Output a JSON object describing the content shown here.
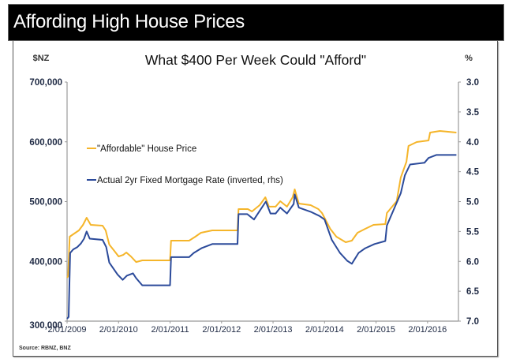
{
  "banner": {
    "title": "Affording High House Prices"
  },
  "source": "Source: RBNZ, BNZ",
  "chart_data": {
    "type": "line",
    "title": "What $400 Per Week Could \"Afford\"",
    "left_axis": {
      "label": "$NZ",
      "range": [
        300000,
        700000
      ],
      "ticks": [
        300000,
        400000,
        500000,
        600000,
        700000
      ],
      "tick_labels": [
        "300,000",
        "400,000",
        "500,000",
        "600,000",
        "700,000"
      ]
    },
    "right_axis": {
      "label": "%",
      "range": [
        3.0,
        7.0
      ],
      "inverted": true,
      "ticks": [
        3.0,
        3.5,
        4.0,
        4.5,
        5.0,
        5.5,
        6.0,
        6.5,
        7.0
      ],
      "tick_labels": [
        "3.0",
        "3.5",
        "4.0",
        "4.5",
        "5.0",
        "5.5",
        "6.0",
        "6.5",
        "7.0"
      ]
    },
    "x_axis": {
      "range": [
        2009.0,
        2016.6
      ],
      "ticks": [
        2009,
        2010,
        2011,
        2012,
        2013,
        2014,
        2015,
        2016
      ],
      "tick_labels": [
        "2/01/2009",
        "2/01/2010",
        "2/01/2011",
        "2/01/2012",
        "2/01/2013",
        "2/01/2014",
        "2/01/2015",
        "2/01/2016"
      ]
    },
    "grid": false,
    "legend": {
      "placement": "top-left"
    },
    "series": [
      {
        "name": "\"Affordable\" House Price",
        "axis": "left",
        "color": "#f5b52a",
        "points": [
          [
            2009.0,
            372700
          ],
          [
            2009.02,
            375300
          ],
          [
            2009.05,
            441300
          ],
          [
            2009.14,
            446500
          ],
          [
            2009.23,
            451800
          ],
          [
            2009.31,
            461000
          ],
          [
            2009.38,
            472900
          ],
          [
            2009.46,
            461000
          ],
          [
            2009.69,
            459700
          ],
          [
            2009.75,
            451800
          ],
          [
            2009.82,
            428000
          ],
          [
            2009.92,
            417400
          ],
          [
            2010.0,
            408200
          ],
          [
            2010.09,
            410800
          ],
          [
            2010.15,
            414800
          ],
          [
            2010.24,
            408200
          ],
          [
            2010.34,
            398900
          ],
          [
            2010.46,
            401600
          ],
          [
            2011.0,
            401600
          ],
          [
            2011.02,
            434600
          ],
          [
            2011.37,
            434600
          ],
          [
            2011.49,
            441300
          ],
          [
            2011.6,
            447900
          ],
          [
            2011.82,
            451800
          ],
          [
            2012.31,
            451800
          ],
          [
            2012.33,
            487500
          ],
          [
            2012.51,
            487500
          ],
          [
            2012.59,
            483500
          ],
          [
            2012.74,
            494100
          ],
          [
            2012.85,
            507300
          ],
          [
            2012.92,
            491500
          ],
          [
            2013.05,
            491500
          ],
          [
            2013.14,
            500700
          ],
          [
            2013.27,
            491500
          ],
          [
            2013.38,
            507300
          ],
          [
            2013.42,
            520500
          ],
          [
            2013.5,
            496700
          ],
          [
            2013.73,
            494100
          ],
          [
            2013.88,
            487500
          ],
          [
            2013.95,
            480800
          ],
          [
            2014.11,
            454400
          ],
          [
            2014.23,
            441300
          ],
          [
            2014.41,
            432000
          ],
          [
            2014.53,
            434600
          ],
          [
            2014.64,
            447900
          ],
          [
            2014.79,
            454400
          ],
          [
            2014.95,
            461000
          ],
          [
            2015.18,
            462400
          ],
          [
            2015.21,
            480800
          ],
          [
            2015.4,
            500700
          ],
          [
            2015.48,
            540300
          ],
          [
            2015.59,
            566700
          ],
          [
            2015.63,
            593100
          ],
          [
            2015.79,
            599700
          ],
          [
            2016.02,
            602300
          ],
          [
            2016.05,
            615500
          ],
          [
            2016.24,
            618200
          ],
          [
            2016.56,
            615500
          ]
        ]
      },
      {
        "name": "Actual 2yr Fixed Mortgage Rate (inverted, rhs)",
        "axis": "right",
        "color": "#2b4a9a",
        "points": [
          [
            2009.0,
            6.96
          ],
          [
            2009.03,
            6.93
          ],
          [
            2009.06,
            5.86
          ],
          [
            2009.12,
            5.8
          ],
          [
            2009.2,
            5.76
          ],
          [
            2009.27,
            5.7
          ],
          [
            2009.33,
            5.62
          ],
          [
            2009.38,
            5.5
          ],
          [
            2009.44,
            5.62
          ],
          [
            2009.69,
            5.64
          ],
          [
            2009.76,
            5.76
          ],
          [
            2009.82,
            6.02
          ],
          [
            2009.9,
            6.12
          ],
          [
            2009.98,
            6.22
          ],
          [
            2010.08,
            6.31
          ],
          [
            2010.16,
            6.24
          ],
          [
            2010.28,
            6.2
          ],
          [
            2010.34,
            6.28
          ],
          [
            2010.46,
            6.4
          ],
          [
            2011.0,
            6.4
          ],
          [
            2011.02,
            5.93
          ],
          [
            2011.37,
            5.93
          ],
          [
            2011.46,
            5.86
          ],
          [
            2011.61,
            5.78
          ],
          [
            2011.82,
            5.71
          ],
          [
            2012.31,
            5.71
          ],
          [
            2012.33,
            5.21
          ],
          [
            2012.5,
            5.21
          ],
          [
            2012.63,
            5.3
          ],
          [
            2012.76,
            5.13
          ],
          [
            2012.86,
            5.0
          ],
          [
            2012.95,
            5.2
          ],
          [
            2013.05,
            5.2
          ],
          [
            2013.14,
            5.1
          ],
          [
            2013.27,
            5.2
          ],
          [
            2013.4,
            5.04
          ],
          [
            2013.42,
            4.88
          ],
          [
            2013.5,
            5.1
          ],
          [
            2013.73,
            5.17
          ],
          [
            2013.9,
            5.24
          ],
          [
            2014.0,
            5.3
          ],
          [
            2014.14,
            5.64
          ],
          [
            2014.3,
            5.86
          ],
          [
            2014.44,
            5.99
          ],
          [
            2014.53,
            6.04
          ],
          [
            2014.66,
            5.86
          ],
          [
            2014.79,
            5.78
          ],
          [
            2014.97,
            5.71
          ],
          [
            2015.18,
            5.66
          ],
          [
            2015.21,
            5.4
          ],
          [
            2015.37,
            5.08
          ],
          [
            2015.48,
            4.86
          ],
          [
            2015.56,
            4.56
          ],
          [
            2015.66,
            4.38
          ],
          [
            2015.94,
            4.35
          ],
          [
            2016.02,
            4.27
          ],
          [
            2016.17,
            4.22
          ],
          [
            2016.56,
            4.22
          ]
        ]
      }
    ]
  }
}
